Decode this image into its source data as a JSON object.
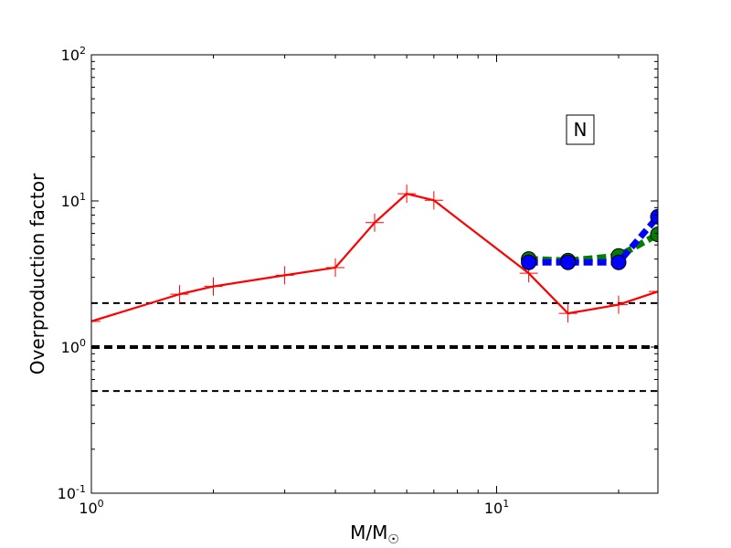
{
  "chart_data": {
    "type": "line",
    "title": "",
    "xlabel": "M/M",
    "xlabel_subscript": "☉",
    "ylabel": "Overproduction factor",
    "xscale": "log",
    "yscale": "log",
    "xlim": [
      1,
      25
    ],
    "ylim": [
      0.1,
      100
    ],
    "grid": false,
    "annotation": "N",
    "x_ticks": [
      {
        "value": 1,
        "base": "10",
        "exp": "0"
      },
      {
        "value": 10,
        "base": "10",
        "exp": "1"
      }
    ],
    "y_ticks": [
      {
        "value": 0.1,
        "base": "10",
        "exp": "-1"
      },
      {
        "value": 1,
        "base": "10",
        "exp": "0"
      },
      {
        "value": 10,
        "base": "10",
        "exp": "1"
      },
      {
        "value": 100,
        "base": "10",
        "exp": "2"
      }
    ],
    "reference_lines": [
      {
        "y": 2.0,
        "style": "dashed",
        "weight": "thin",
        "color": "#000000"
      },
      {
        "y": 1.0,
        "style": "dashed",
        "weight": "thick",
        "color": "#000000"
      },
      {
        "y": 0.5,
        "style": "dashed",
        "weight": "thin",
        "color": "#000000"
      }
    ],
    "series": [
      {
        "color": "#ff0000",
        "style": "solid",
        "marker": "plus",
        "x": [
          1,
          1.65,
          2,
          3,
          4,
          5,
          6,
          7,
          12,
          15,
          20,
          25
        ],
        "y": [
          1.5,
          2.3,
          2.6,
          3.1,
          3.5,
          7.1,
          11.2,
          10.1,
          3.2,
          1.7,
          1.95,
          2.4
        ]
      },
      {
        "color": "#008000",
        "style": "dashed",
        "marker": "circle",
        "x": [
          12,
          15,
          20,
          25
        ],
        "y": [
          4.0,
          3.9,
          4.2,
          5.9
        ]
      },
      {
        "color": "#0000ff",
        "style": "dashed",
        "marker": "circle",
        "x": [
          12,
          15,
          20,
          25
        ],
        "y": [
          3.8,
          3.8,
          3.8,
          7.8
        ]
      }
    ]
  }
}
